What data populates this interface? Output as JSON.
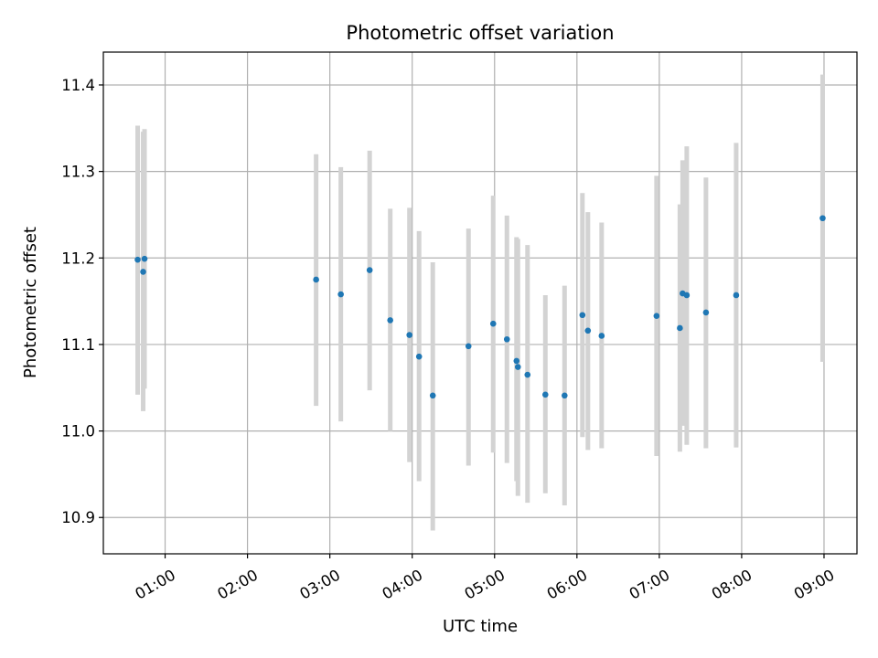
{
  "chart_data": {
    "type": "scatter",
    "title": "Photometric offset variation",
    "xlabel": "UTC time",
    "ylabel": "Photometric offset",
    "x_ticks": [
      "01:00",
      "02:00",
      "03:00",
      "04:00",
      "05:00",
      "06:00",
      "07:00",
      "08:00",
      "09:00"
    ],
    "y_ticks": [
      "10.9",
      "11.0",
      "11.1",
      "11.2",
      "11.3",
      "11.4"
    ],
    "xlim": [
      "00:15",
      "09:24"
    ],
    "ylim": [
      10.858,
      11.438
    ],
    "grid": true,
    "marker_color": "#1f77b4",
    "errorbar_color": "#d3d3d3",
    "points": [
      {
        "t": "00:40",
        "y": 11.198,
        "lo": 11.042,
        "hi": 11.353
      },
      {
        "t": "00:44",
        "y": 11.184,
        "lo": 11.023,
        "hi": 11.346
      },
      {
        "t": "00:45",
        "y": 11.199,
        "lo": 11.049,
        "hi": 11.349
      },
      {
        "t": "02:50",
        "y": 11.175,
        "lo": 11.029,
        "hi": 11.32
      },
      {
        "t": "03:08",
        "y": 11.158,
        "lo": 11.011,
        "hi": 11.305
      },
      {
        "t": "03:29",
        "y": 11.186,
        "lo": 11.047,
        "hi": 11.324
      },
      {
        "t": "03:44",
        "y": 11.128,
        "lo": 11.0,
        "hi": 11.257
      },
      {
        "t": "03:58",
        "y": 11.111,
        "lo": 10.964,
        "hi": 11.258
      },
      {
        "t": "04:05",
        "y": 11.086,
        "lo": 10.942,
        "hi": 11.231
      },
      {
        "t": "04:15",
        "y": 11.041,
        "lo": 10.885,
        "hi": 11.195
      },
      {
        "t": "04:41",
        "y": 11.098,
        "lo": 10.96,
        "hi": 11.234
      },
      {
        "t": "04:59",
        "y": 11.124,
        "lo": 10.975,
        "hi": 11.272
      },
      {
        "t": "05:09",
        "y": 11.106,
        "lo": 10.963,
        "hi": 11.249
      },
      {
        "t": "05:16",
        "y": 11.081,
        "lo": 10.942,
        "hi": 11.224
      },
      {
        "t": "05:17",
        "y": 11.074,
        "lo": 10.925,
        "hi": 11.222
      },
      {
        "t": "05:24",
        "y": 11.065,
        "lo": 10.917,
        "hi": 11.215
      },
      {
        "t": "05:37",
        "y": 11.042,
        "lo": 10.928,
        "hi": 11.157
      },
      {
        "t": "05:51",
        "y": 11.041,
        "lo": 10.914,
        "hi": 11.168
      },
      {
        "t": "06:04",
        "y": 11.134,
        "lo": 10.993,
        "hi": 11.275
      },
      {
        "t": "06:08",
        "y": 11.116,
        "lo": 10.978,
        "hi": 11.253
      },
      {
        "t": "06:18",
        "y": 11.11,
        "lo": 10.98,
        "hi": 11.241
      },
      {
        "t": "06:58",
        "y": 11.133,
        "lo": 10.971,
        "hi": 11.295
      },
      {
        "t": "07:15",
        "y": 11.119,
        "lo": 10.976,
        "hi": 11.262
      },
      {
        "t": "07:17",
        "y": 11.159,
        "lo": 11.006,
        "hi": 11.313
      },
      {
        "t": "07:20",
        "y": 11.157,
        "lo": 10.984,
        "hi": 11.329
      },
      {
        "t": "07:34",
        "y": 11.137,
        "lo": 10.98,
        "hi": 11.293
      },
      {
        "t": "07:56",
        "y": 11.157,
        "lo": 10.981,
        "hi": 11.333
      },
      {
        "t": "08:59",
        "y": 11.246,
        "lo": 11.08,
        "hi": 11.412
      }
    ]
  }
}
